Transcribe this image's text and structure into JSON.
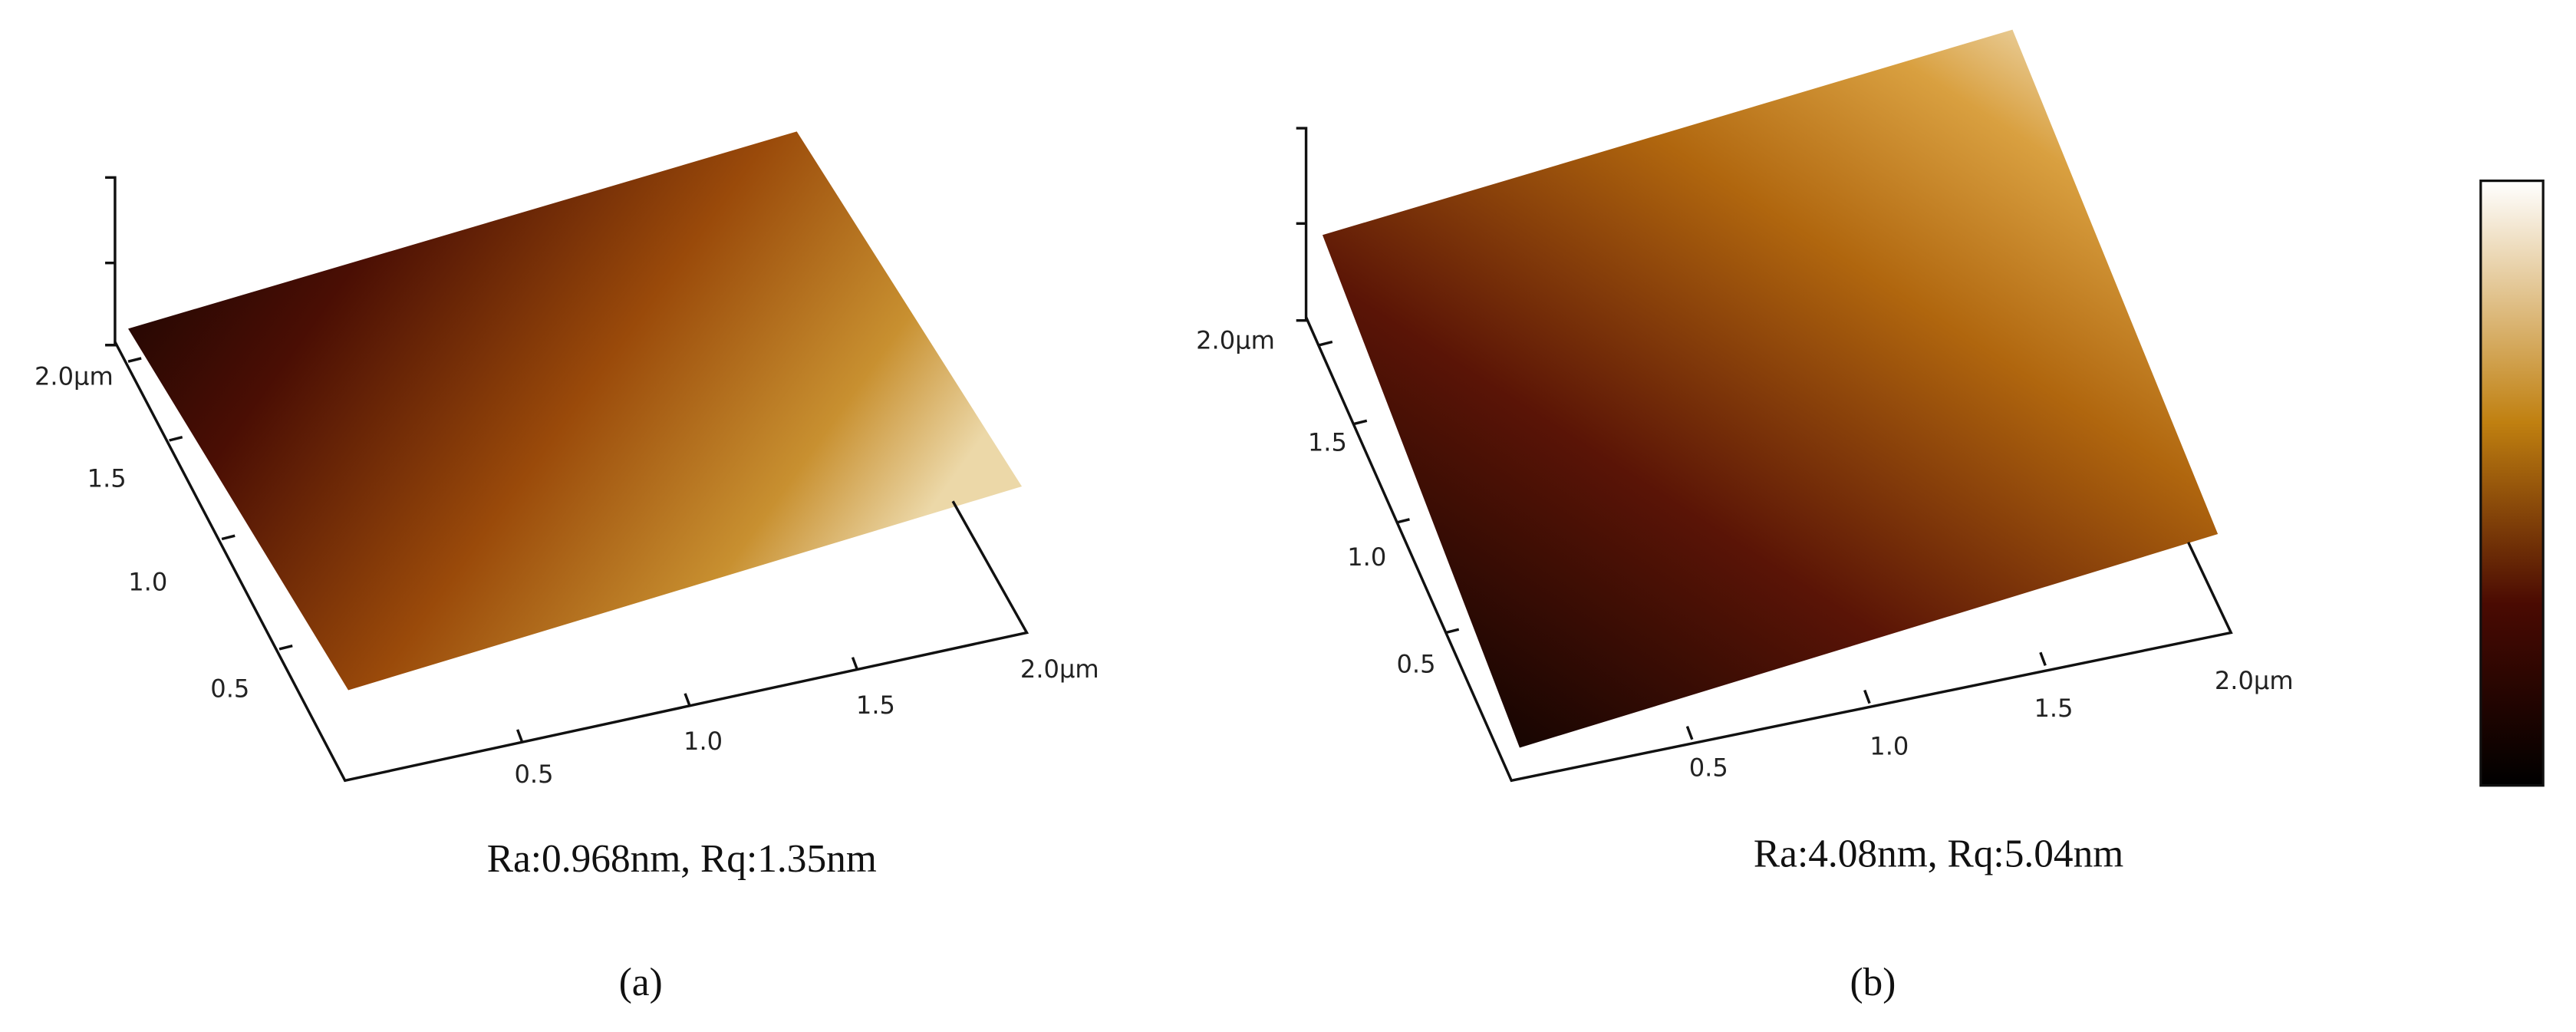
{
  "panels": [
    {
      "label": "(a)",
      "roughness": "Ra:0.968nm, Rq:1.35nm",
      "y_ticks": [
        "2.0μm",
        "1.5",
        "1.0",
        "0.5"
      ],
      "x_ticks": [
        "0.5",
        "1.0",
        "1.5",
        "2.0μm"
      ]
    },
    {
      "label": "(b)",
      "roughness": "Ra:4.08nm, Rq:5.04nm",
      "y_ticks": [
        "2.0μm",
        "1.5",
        "1.0",
        "0.5"
      ],
      "x_ticks": [
        "0.5",
        "1.0",
        "1.5",
        "2.0μm"
      ]
    }
  ]
}
